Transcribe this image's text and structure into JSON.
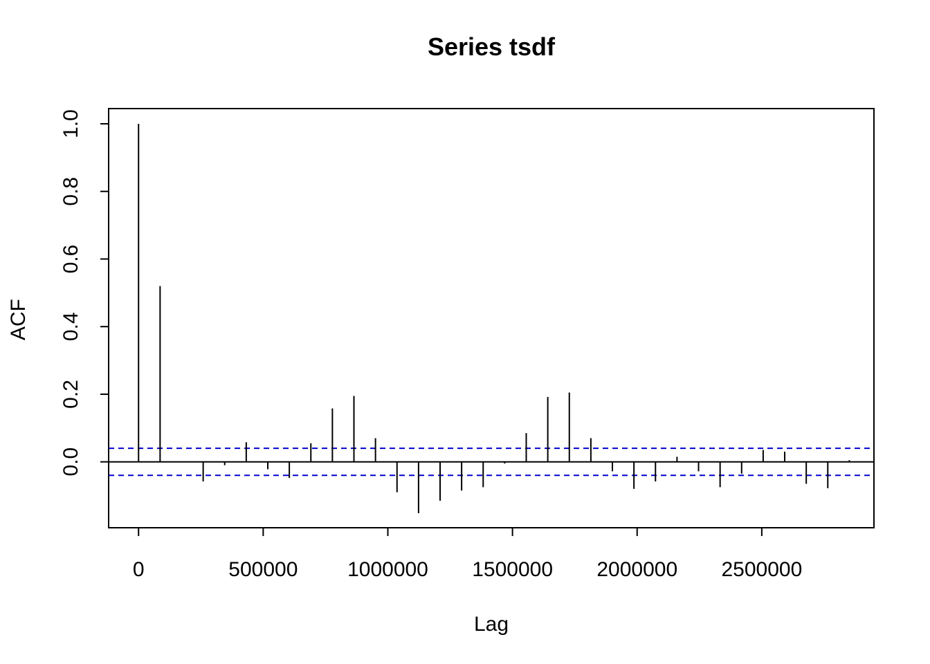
{
  "chart_data": {
    "type": "bar",
    "title": "Series  tsdf",
    "xlabel": "Lag",
    "ylabel": "ACF",
    "xlim": [
      -120000,
      2950000
    ],
    "ylim": [
      -0.195,
      1.045
    ],
    "x_ticks": [
      0,
      500000,
      1000000,
      1500000,
      2000000,
      2500000
    ],
    "x_tick_labels": [
      "0",
      "500000",
      "1000000",
      "1500000",
      "2000000",
      "2500000"
    ],
    "y_ticks": [
      0.0,
      0.2,
      0.4,
      0.6,
      0.8,
      1.0
    ],
    "y_tick_labels": [
      "0.0",
      "0.2",
      "0.4",
      "0.6",
      "0.8",
      "1.0"
    ],
    "confidence_bound": 0.04,
    "colors": {
      "bars": "#000000",
      "bounds": "#0000CC"
    },
    "x": [
      0,
      86400,
      172800,
      259200,
      345600,
      432000,
      518400,
      604800,
      691200,
      777600,
      864000,
      950400,
      1036800,
      1123200,
      1209600,
      1296000,
      1382400,
      1468800,
      1555200,
      1641600,
      1728000,
      1814400,
      1900800,
      1987200,
      2073600,
      2160000,
      2246400,
      2332800,
      2419200,
      2505600,
      2592000,
      2678400,
      2764800,
      2851200
    ],
    "values": [
      1.0,
      0.52,
      0.0,
      -0.058,
      -0.01,
      0.058,
      -0.022,
      -0.048,
      0.055,
      0.158,
      0.195,
      0.07,
      -0.09,
      -0.152,
      -0.115,
      -0.085,
      -0.075,
      -0.005,
      0.085,
      0.192,
      0.205,
      0.07,
      -0.028,
      -0.08,
      -0.058,
      0.015,
      -0.028,
      -0.075,
      -0.035,
      0.035,
      0.03,
      -0.065,
      -0.078,
      0.005
    ]
  }
}
